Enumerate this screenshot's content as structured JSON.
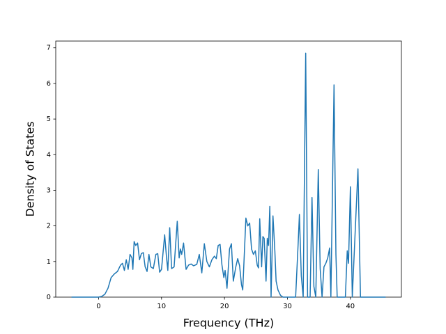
{
  "chart_data": {
    "type": "line",
    "xlabel": "Frequency (THz)",
    "ylabel": "Density of States",
    "color": "#1f77b4",
    "xlim": [
      -6.8,
      48.1
    ],
    "ylim": [
      0,
      7.19
    ],
    "xticks": [
      0,
      10,
      20,
      30,
      40
    ],
    "yticks": [
      0,
      1,
      2,
      3,
      4,
      5,
      6,
      7
    ],
    "x": [
      -4.3,
      0,
      0.5,
      1,
      1.5,
      2,
      2.5,
      3,
      3.5,
      3.8,
      4.1,
      4.4,
      4.7,
      5.0,
      5.3,
      5.45,
      5.65,
      5.9,
      6.2,
      6.5,
      6.8,
      7.1,
      7.4,
      7.7,
      8.0,
      8.3,
      8.7,
      9.1,
      9.4,
      9.7,
      10.0,
      10.5,
      10.8,
      11.0,
      11.3,
      11.6,
      12.0,
      12.5,
      12.8,
      13.0,
      13.2,
      13.5,
      13.9,
      14.3,
      14.7,
      15.1,
      15.6,
      16.0,
      16.4,
      16.8,
      17.2,
      17.6,
      18.0,
      18.4,
      18.7,
      19.0,
      19.3,
      19.6,
      19.9,
      20.1,
      20.4,
      20.8,
      21.1,
      21.4,
      21.8,
      22.1,
      22.4,
      22.7,
      22.9,
      23.4,
      23.7,
      24.0,
      24.3,
      24.6,
      24.9,
      25.2,
      25.4,
      25.6,
      25.9,
      26.1,
      26.3,
      26.6,
      26.8,
      27.0,
      27.2,
      27.4,
      27.7,
      28.0,
      28.2,
      28.5,
      28.9,
      29.3,
      31.3,
      31.7,
      31.9,
      32.2,
      32.5,
      32.9,
      33.2,
      33.6,
      33.9,
      34.2,
      34.5,
      34.9,
      35.2,
      35.5,
      35.8,
      36.1,
      36.4,
      36.7,
      36.9,
      37.4,
      37.7,
      37.9,
      39.2,
      39.5,
      39.7,
      40.0,
      40.3,
      41.2,
      41.6,
      45.6
    ],
    "values": [
      0,
      0,
      0.02,
      0.08,
      0.25,
      0.55,
      0.65,
      0.72,
      0.9,
      0.95,
      0.75,
      1.05,
      0.78,
      1.2,
      1.1,
      0.78,
      1.56,
      1.45,
      1.52,
      1.05,
      1.22,
      1.25,
      0.85,
      0.72,
      1.2,
      0.85,
      0.8,
      1.2,
      1.22,
      0.7,
      0.78,
      1.75,
      1.1,
      0.75,
      1.95,
      0.8,
      0.85,
      2.13,
      1.1,
      1.35,
      1.2,
      1.52,
      0.78,
      0.9,
      0.93,
      0.88,
      0.92,
      1.2,
      0.68,
      1.5,
      1.0,
      0.85,
      1.05,
      1.15,
      1.08,
      1.45,
      1.48,
      0.9,
      0.55,
      0.75,
      0.25,
      1.35,
      1.5,
      0.45,
      0.85,
      1.08,
      0.88,
      0.35,
      0.2,
      2.22,
      2.0,
      2.08,
      1.35,
      1.2,
      1.3,
      0.9,
      0.82,
      2.2,
      0.85,
      1.7,
      1.65,
      0.45,
      1.65,
      1.45,
      2.55,
      0,
      2.28,
      1.3,
      0.45,
      0.2,
      0.05,
      0,
      0,
      1.5,
      2.32,
      0.6,
      0,
      6.85,
      0,
      0,
      2.8,
      0.3,
      0,
      3.58,
      0.8,
      0,
      0.85,
      0.95,
      1.1,
      1.38,
      0,
      5.96,
      1.2,
      0,
      0,
      1.3,
      0.95,
      3.1,
      0,
      3.6,
      0,
      0
    ]
  }
}
